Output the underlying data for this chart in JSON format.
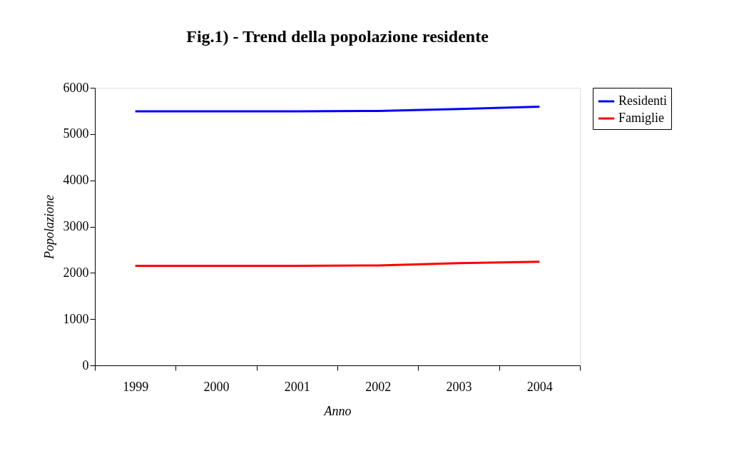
{
  "chart_data": {
    "type": "line",
    "title": "Fig.1) - Trend della popolazione residente",
    "xlabel": "Anno",
    "ylabel": "Popolazione",
    "categories": [
      "1999",
      "2000",
      "2001",
      "2002",
      "2003",
      "2004"
    ],
    "series": [
      {
        "name": "Residenti",
        "color": "#0000ff",
        "values": [
          5490,
          5490,
          5490,
          5500,
          5540,
          5590
        ]
      },
      {
        "name": "Famiglie",
        "color": "#ff0000",
        "values": [
          2150,
          2150,
          2150,
          2160,
          2210,
          2240
        ]
      }
    ],
    "ylim": [
      0,
      6000
    ],
    "yticks": [
      0,
      1000,
      2000,
      3000,
      4000,
      5000,
      6000
    ],
    "grid": false,
    "legend": "right",
    "marker": "none",
    "line_style": "solid"
  }
}
